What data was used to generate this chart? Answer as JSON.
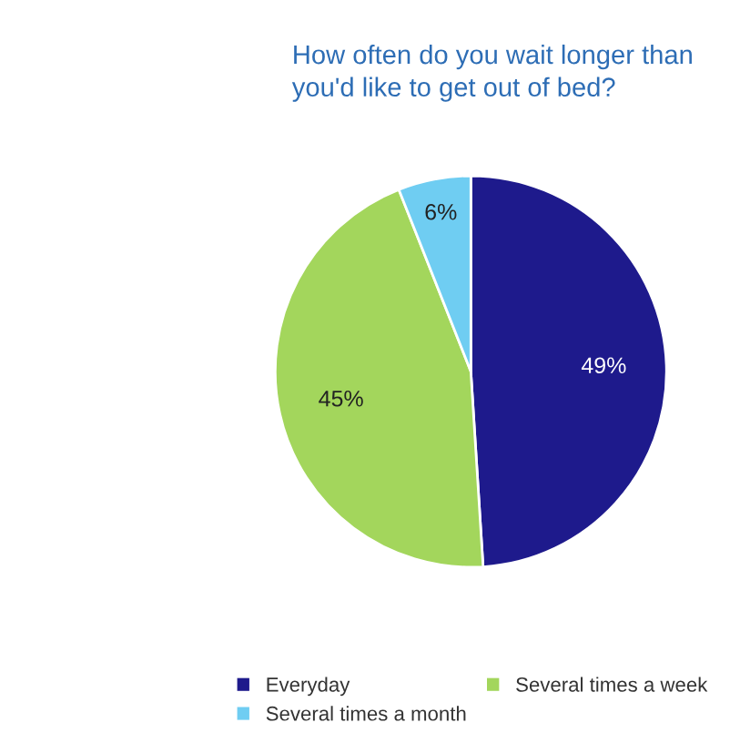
{
  "chart_data": {
    "type": "pie",
    "title": "How often do you wait longer than\nyou'd like to get out of bed?",
    "categories": [
      "Everyday",
      "Several times a week",
      "Several times a month"
    ],
    "values": [
      49,
      45,
      6
    ],
    "colors": [
      "#1e1a8c",
      "#a3d65c",
      "#6fcdf2"
    ],
    "value_labels": [
      "49%",
      "45%",
      "6%"
    ],
    "legend": "bottom"
  }
}
